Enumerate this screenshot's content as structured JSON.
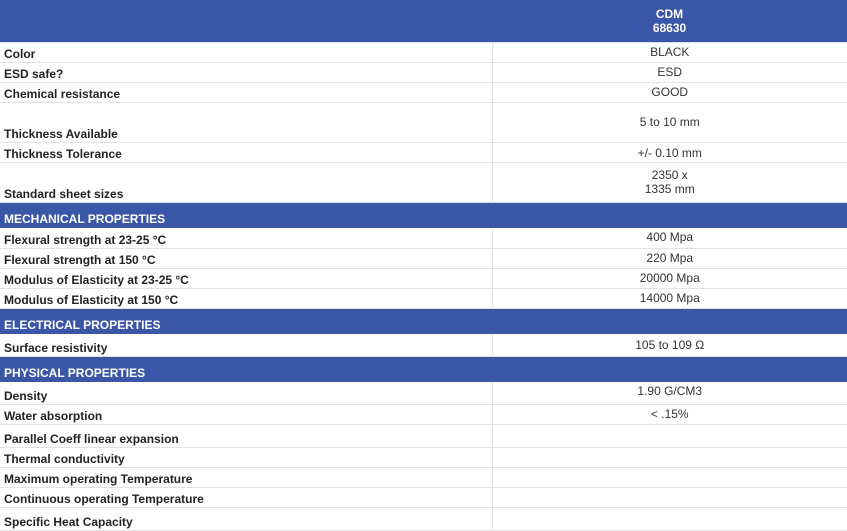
{
  "header": {
    "title_line1": "CDM",
    "title_line2": "68630"
  },
  "general": [
    {
      "label": "Color",
      "value": "BLACK"
    },
    {
      "label": "ESD safe?",
      "value": "ESD"
    },
    {
      "label": "Chemical resistance",
      "value": "GOOD"
    },
    {
      "label": "Thickness Available",
      "value": "5 to 10 mm"
    },
    {
      "label": "Thickness Tolerance",
      "value": "+/- 0.10 mm"
    },
    {
      "label": "Standard sheet sizes",
      "value_line1": "2350  x",
      "value_line2": "1335 mm"
    }
  ],
  "mechanical": {
    "title": "MECHANICAL PROPERTIES",
    "rows": [
      {
        "label": "Flexural strength at 23-25 °C",
        "value": "400 Mpa"
      },
      {
        "label": "Flexural strength at 150 °C",
        "value": "220 Mpa"
      },
      {
        "label": "Modulus of Elasticity at 23-25 °C",
        "value": "20000 Mpa"
      },
      {
        "label": "Modulus of Elasticity at 150 °C",
        "value": "14000 Mpa"
      }
    ]
  },
  "electrical": {
    "title": "ELECTRICAL PROPERTIES",
    "rows": [
      {
        "label": "Surface resistivity",
        "value": "105 to 109 Ω"
      }
    ]
  },
  "physical": {
    "title": "PHYSICAL PROPERTIES",
    "rows": [
      {
        "label": "Density",
        "value": "1.90 G/CM3"
      },
      {
        "label": "Water absorption",
        "value": "< .15%"
      },
      {
        "label": "Parallel Coeff linear expansion",
        "value": ""
      },
      {
        "label": "Thermal conductivity",
        "value": ""
      },
      {
        "label": "Maximum operating Temperature",
        "value": ""
      },
      {
        "label": "Continuous operating Temperature",
        "value": ""
      },
      {
        "label": "Specific Heat Capacity",
        "value": ""
      }
    ]
  }
}
